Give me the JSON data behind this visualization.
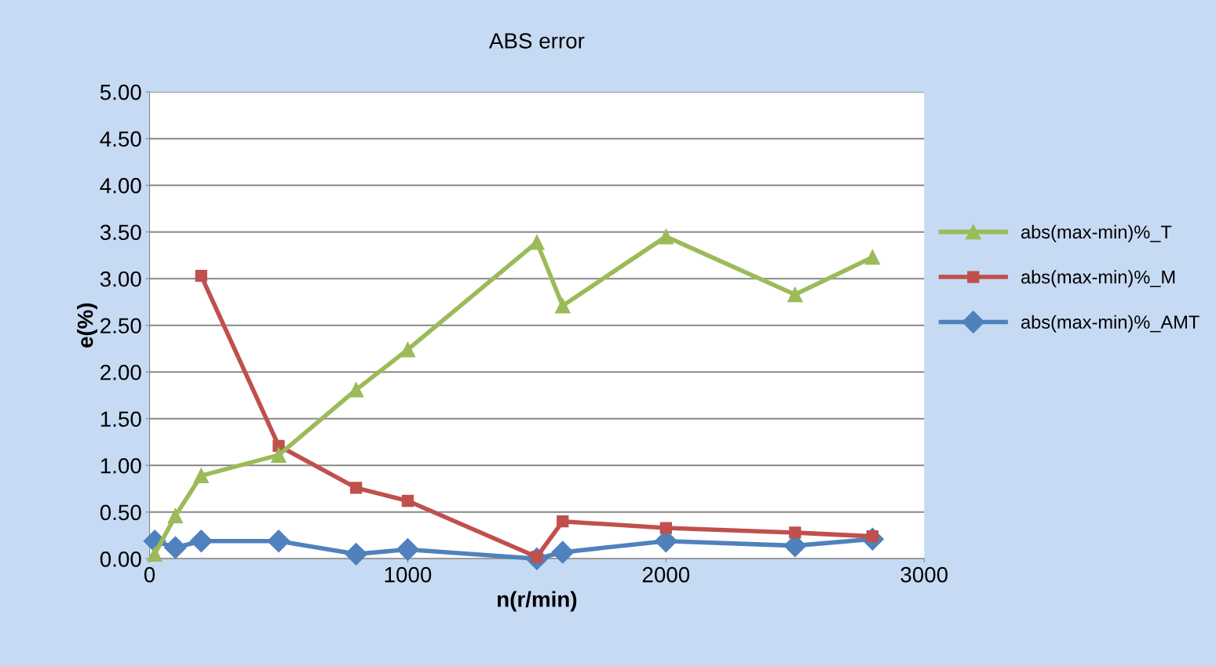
{
  "chart_data": {
    "type": "line",
    "title": "ABS error",
    "xlabel": "n(r/min)",
    "ylabel": "e(%)",
    "x": [
      20,
      100,
      200,
      500,
      800,
      1000,
      1500,
      1600,
      2000,
      2500,
      2800
    ],
    "series": [
      {
        "name": "abs(max-min)%_T",
        "color": "#9bbb59",
        "marker": "triangle",
        "values": [
          0.05,
          0.46,
          0.89,
          1.11,
          1.81,
          2.24,
          3.39,
          2.71,
          3.45,
          2.83,
          3.23
        ]
      },
      {
        "name": "abs(max-min)%_M",
        "color": "#c0504d",
        "marker": "square",
        "values": [
          null,
          null,
          3.03,
          1.21,
          0.76,
          0.62,
          0.02,
          0.4,
          0.33,
          0.28,
          0.24
        ]
      },
      {
        "name": "abs(max-min)%_AMT",
        "color": "#4f81bd",
        "marker": "diamond",
        "values": [
          0.19,
          0.12,
          0.19,
          0.19,
          0.05,
          0.1,
          0.0,
          0.07,
          0.19,
          0.14,
          0.21
        ]
      }
    ],
    "xlim": [
      0,
      3000
    ],
    "xticks": [
      0,
      1000,
      2000,
      3000
    ],
    "ylim": [
      0,
      5
    ],
    "yticks": [
      {
        "value": 0,
        "label": "0.00"
      },
      {
        "value": 0.5,
        "label": "0.50"
      },
      {
        "value": 1,
        "label": "1.00"
      },
      {
        "value": 1.5,
        "label": "1.50"
      },
      {
        "value": 2,
        "label": "2.00"
      },
      {
        "value": 2.5,
        "label": "2.50"
      },
      {
        "value": 3,
        "label": "3.00"
      },
      {
        "value": 3.5,
        "label": "3.50"
      },
      {
        "value": 4,
        "label": "4.00"
      },
      {
        "value": 4.5,
        "label": "4.50"
      },
      {
        "value": 5,
        "label": "5.00"
      }
    ],
    "grid": "y",
    "legend": "right",
    "line_style": "solid"
  }
}
